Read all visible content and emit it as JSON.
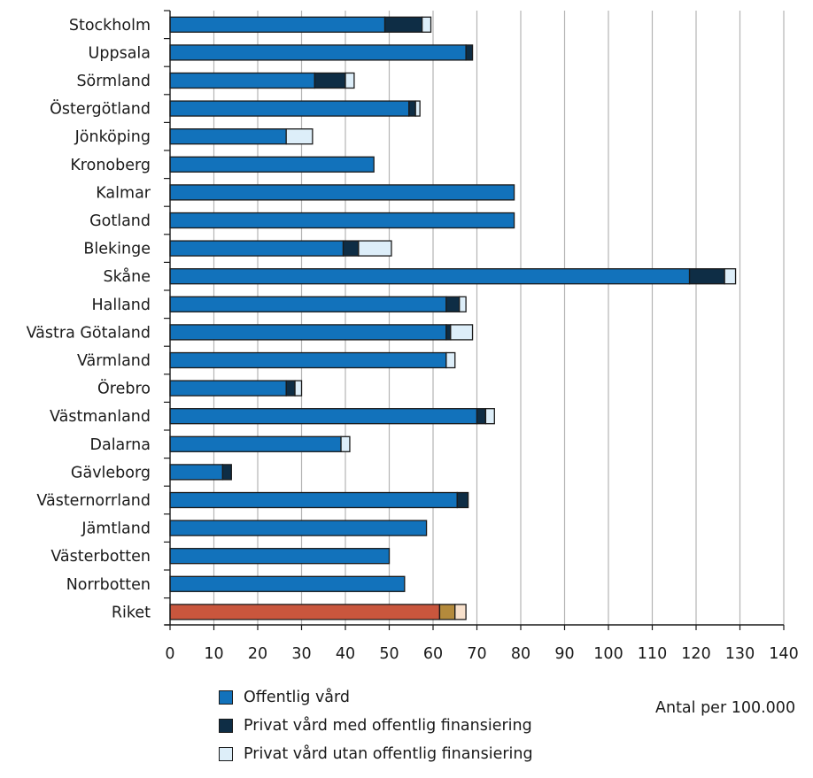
{
  "chart_data": {
    "type": "bar",
    "orientation": "horizontal",
    "stacked": true,
    "categories": [
      "Stockholm",
      "Uppsala",
      "Sörmland",
      "Östergötland",
      "Jönköping",
      "Kronoberg",
      "Kalmar",
      "Gotland",
      "Blekinge",
      "Skåne",
      "Halland",
      "Västra Götaland",
      "Värmland",
      "Örebro",
      "Västmanland",
      "Dalarna",
      "Gävleborg",
      "Västernorrland",
      "Jämtland",
      "Västerbotten",
      "Norrbotten",
      "Riket"
    ],
    "series": [
      {
        "name": "Offentlig vård",
        "color": "#1272bb",
        "values": [
          49,
          67.5,
          33,
          54.5,
          26.5,
          46.5,
          78.5,
          78.5,
          39.5,
          118.5,
          63,
          63,
          63,
          26.5,
          70,
          39,
          12,
          65.5,
          58.5,
          50,
          53.5,
          61.5
        ]
      },
      {
        "name": "Privat vård med offentlig finansiering",
        "color": "#0e2d45",
        "values": [
          8.5,
          1.5,
          7,
          1.5,
          0,
          0,
          0,
          0,
          3.5,
          8,
          3,
          1,
          0,
          2,
          2,
          0,
          2,
          2.5,
          0,
          0,
          0,
          3.5
        ]
      },
      {
        "name": "Privat vård utan offentlig finansiering",
        "color": "#ddeef9",
        "values": [
          2,
          0,
          2,
          1,
          6,
          0,
          0,
          0,
          7.5,
          2.5,
          1.5,
          5,
          2,
          1.5,
          2,
          2,
          0,
          0,
          0,
          0,
          0,
          2.5
        ]
      }
    ],
    "highlight": {
      "category": "Riket",
      "colors": [
        "#c9563d",
        "#b48a3c",
        "#f8e1cc"
      ]
    },
    "xlim": [
      0,
      140
    ],
    "xticks": [
      "0",
      "10",
      "20",
      "30",
      "40",
      "50",
      "60",
      "70",
      "80",
      "90",
      "100",
      "110",
      "120",
      "130",
      "140"
    ],
    "grid": true,
    "xlabel": "Antal per 100.000",
    "legend_position": "bottom"
  }
}
